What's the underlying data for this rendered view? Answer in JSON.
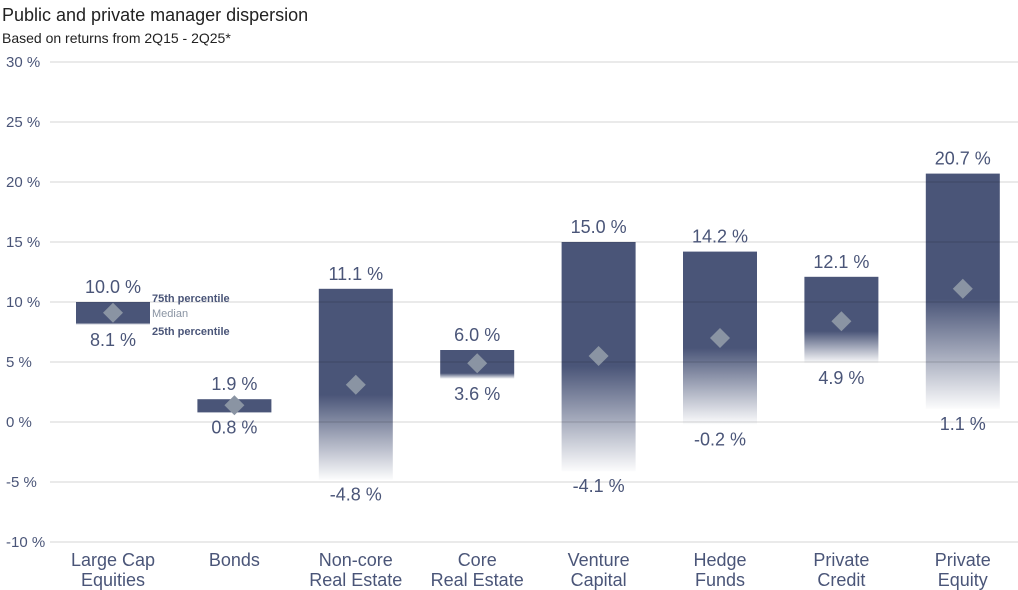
{
  "chart_data": {
    "type": "bar",
    "title": "Public and private manager dispersion",
    "subtitle": "Based on returns from 2Q15 - 2Q25*",
    "xlabel": "",
    "ylabel": "",
    "ylim": [
      -10,
      30
    ],
    "yticks": [
      30,
      25,
      20,
      15,
      10,
      5,
      0,
      -5,
      -10
    ],
    "ytick_labels": [
      "30 %",
      "25 %",
      "20 %",
      "15 %",
      "10 %",
      "5 %",
      "0 %",
      "-5 %",
      "-10 %"
    ],
    "grid": true,
    "categories": [
      [
        "Large Cap",
        "Equities"
      ],
      [
        "Bonds",
        ""
      ],
      [
        "Non-core",
        "Real Estate"
      ],
      [
        "Core",
        "Real Estate"
      ],
      [
        "Venture",
        "Capital"
      ],
      [
        "Hedge",
        "Funds"
      ],
      [
        "Private",
        "Credit"
      ],
      [
        "Private",
        "Equity"
      ]
    ],
    "series": [
      {
        "name": "75th percentile",
        "values": [
          10.0,
          1.9,
          11.1,
          6.0,
          15.0,
          14.2,
          12.1,
          20.7
        ],
        "labels": [
          "10.0 %",
          "1.9 %",
          "11.1 %",
          "6.0 %",
          "15.0 %",
          "14.2 %",
          "12.1 %",
          "20.7 %"
        ]
      },
      {
        "name": "Median",
        "values": [
          9.1,
          1.4,
          3.1,
          4.9,
          5.5,
          7.0,
          8.4,
          11.1
        ]
      },
      {
        "name": "25th percentile",
        "values": [
          8.1,
          0.8,
          -4.8,
          3.6,
          -4.1,
          -0.2,
          4.9,
          1.1
        ],
        "labels": [
          "8.1 %",
          "0.8 %",
          "-4.8 %",
          "3.6 %",
          "-4.1 %",
          "-0.2 %",
          "4.9 %",
          "1.1 %"
        ]
      }
    ],
    "annotations": [
      "75th percentile",
      "Median",
      "25th percentile"
    ],
    "colors": {
      "bar": "#4a5578",
      "median": "#8a94a3",
      "text": "#4a5578",
      "grid": "#dddddd"
    }
  }
}
